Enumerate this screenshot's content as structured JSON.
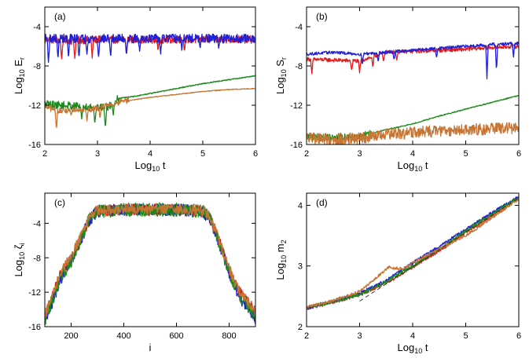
{
  "chart_data": [
    {
      "type": "line",
      "panel_label": "(a)",
      "xlabel": {
        "base": "Log",
        "sub": "10",
        "rest": " t"
      },
      "ylabel": {
        "base": "Log",
        "sub": "10",
        "rest": " E",
        "sub2": "r"
      },
      "xlim": [
        2,
        6
      ],
      "ylim": [
        -16,
        -2
      ],
      "xticks": [
        2,
        3,
        4,
        5,
        6
      ],
      "xtick_labels": [
        "2",
        "3",
        "4",
        "5",
        "6"
      ],
      "yticks": [
        -4,
        -8,
        -12,
        -16
      ],
      "ytick_labels": [
        "-4",
        "-8",
        "-12",
        "-16"
      ],
      "series": [
        {
          "name": "red",
          "color": "#e41a1c",
          "x": [
            2,
            2.5,
            3,
            3.5,
            4,
            4.5,
            5,
            5.5,
            6
          ],
          "values": [
            -5.3,
            -5.4,
            -5.3,
            -5.3,
            -5.3,
            -5.3,
            -5.3,
            -5.3,
            -5.3
          ],
          "noise": 0.4,
          "dips": [
            [
              2.32,
              -7.5
            ],
            [
              2.57,
              -7.3
            ],
            [
              2.9,
              -7.2
            ],
            [
              3.55,
              -7
            ],
            [
              4.15,
              -6.5
            ],
            [
              4.65,
              -6.5
            ]
          ]
        },
        {
          "name": "blue",
          "color": "#1f1fd6",
          "x": [
            2,
            2.5,
            3,
            3.5,
            4,
            4.5,
            5,
            5.5,
            6
          ],
          "values": [
            -5.2,
            -5.2,
            -5.2,
            -5.2,
            -5.2,
            -5.2,
            -5.2,
            -5.2,
            -5.2
          ],
          "noise": 0.45,
          "dips": [
            [
              2.07,
              -7.7
            ],
            [
              2.25,
              -7.4
            ],
            [
              2.45,
              -7.3
            ],
            [
              2.65,
              -7.2
            ],
            [
              2.8,
              -6.8
            ],
            [
              3.02,
              -7.3
            ],
            [
              3.25,
              -7.2
            ],
            [
              3.55,
              -6.9
            ],
            [
              3.8,
              -6.5
            ],
            [
              4.2,
              -6.8
            ],
            [
              4.6,
              -6.4
            ],
            [
              4.95,
              -6.3
            ],
            [
              5.3,
              -6.2
            ]
          ]
        },
        {
          "name": "green",
          "color": "#1a8a1a",
          "x": [
            2,
            2.3,
            2.6,
            2.9,
            3.2,
            3.4,
            3.7,
            4,
            4.5,
            5,
            5.5,
            6
          ],
          "values": [
            -11.9,
            -12,
            -12.1,
            -12.2,
            -12.2,
            -11.3,
            -11.1,
            -10.8,
            -10.3,
            -9.8,
            -9.4,
            -9.0
          ],
          "noise": 0.4,
          "dips": [
            [
              2.7,
              -13.4
            ],
            [
              2.95,
              -14
            ],
            [
              3.15,
              -14.4
            ],
            [
              3.3,
              -13
            ]
          ],
          "smooth_from": 3.4
        },
        {
          "name": "orange",
          "color": "#c87533",
          "x": [
            2,
            2.3,
            2.6,
            2.9,
            3.2,
            3.5,
            4,
            4.5,
            5,
            5.5,
            6
          ],
          "values": [
            -12.2,
            -12.6,
            -12.4,
            -12.4,
            -12.0,
            -11.6,
            -11.2,
            -10.9,
            -10.6,
            -10.4,
            -10.3
          ],
          "noise": 0.3,
          "dips": [
            [
              2.22,
              -14.5
            ],
            [
              2.5,
              -13
            ],
            [
              2.8,
              -13.6
            ],
            [
              3.05,
              -13.4
            ]
          ],
          "smooth_from": 3.6
        }
      ]
    },
    {
      "type": "line",
      "panel_label": "(b)",
      "xlabel": {
        "base": "Log",
        "sub": "10",
        "rest": " t"
      },
      "ylabel": {
        "base": "Log",
        "sub": "10",
        "rest": " S",
        "sub2": "r"
      },
      "xlim": [
        2,
        6
      ],
      "ylim": [
        -16,
        -2
      ],
      "xticks": [
        2,
        3,
        4,
        5,
        6
      ],
      "xtick_labels": [
        "2",
        "3",
        "4",
        "5",
        "6"
      ],
      "yticks": [
        -4,
        -8,
        -12,
        -16
      ],
      "ytick_labels": [
        "-4",
        "-8",
        "-12",
        "-16"
      ],
      "series": [
        {
          "name": "red",
          "color": "#e41a1c",
          "x": [
            2,
            2.5,
            3,
            3.5,
            4,
            4.5,
            5,
            5.5,
            6
          ],
          "values": [
            -7.3,
            -7.4,
            -7.5,
            -6.6,
            -6.5,
            -6.4,
            -6.3,
            -6.1,
            -6.0
          ],
          "noise": 0.2,
          "dips": [
            [
              2.1,
              -8.8
            ],
            [
              2.85,
              -8.5
            ],
            [
              3.0,
              -8.7
            ],
            [
              3.25,
              -8.2
            ],
            [
              3.45,
              -7.6
            ],
            [
              3.7,
              -7.4
            ]
          ]
        },
        {
          "name": "blue",
          "color": "#1f1fd6",
          "x": [
            2,
            2.5,
            3,
            3.5,
            4,
            4.5,
            5,
            5.5,
            6
          ],
          "values": [
            -6.8,
            -6.6,
            -6.8,
            -6.6,
            -6.4,
            -6.2,
            -6.0,
            -5.8,
            -5.7
          ],
          "noise": 0.15,
          "dips": [
            [
              3.05,
              -7.9
            ],
            [
              3.35,
              -7.6
            ],
            [
              3.65,
              -7.4
            ],
            [
              4.45,
              -7.2
            ],
            [
              5.4,
              -9.3
            ],
            [
              5.58,
              -8.5
            ],
            [
              5.9,
              -7.1
            ]
          ]
        },
        {
          "name": "green",
          "color": "#1a8a1a",
          "x": [
            2,
            2.5,
            3,
            3.2,
            3.5,
            4,
            4.5,
            5,
            5.5,
            6
          ],
          "values": [
            -15.2,
            -15.3,
            -15.1,
            -14.9,
            -14.5,
            -13.9,
            -13.1,
            -12.4,
            -11.7,
            -11.0
          ],
          "noise": 0.4,
          "dips": [],
          "smooth_from": 3.2
        },
        {
          "name": "orange",
          "color": "#c87533",
          "x": [
            2,
            2.5,
            3,
            3.5,
            4,
            4.5,
            5,
            5.5,
            6
          ],
          "values": [
            -15.3,
            -15.5,
            -15.4,
            -15.0,
            -14.8,
            -14.6,
            -14.5,
            -14.4,
            -14.3
          ],
          "noise": 0.6,
          "dips": []
        }
      ]
    },
    {
      "type": "line",
      "panel_label": "(c)",
      "xlabel": {
        "base": "i",
        "sub": "",
        "rest": ""
      },
      "ylabel": {
        "base": "Log",
        "sub": "10",
        "rest": " ζ",
        "sub2": "i"
      },
      "xlim": [
        100,
        900
      ],
      "ylim": [
        -16,
        -0.5
      ],
      "xticks": [
        200,
        400,
        600,
        800
      ],
      "xtick_labels": [
        "200",
        "400",
        "600",
        "800"
      ],
      "yticks": [
        -4,
        -8,
        -12,
        -16
      ],
      "ytick_labels": [
        "-4",
        "-8",
        "-12",
        "-16"
      ],
      "series": [
        {
          "name": "red",
          "color": "#e41a1c",
          "x": [
            100,
            130,
            160,
            200,
            240,
            270,
            300,
            400,
            500,
            600,
            700,
            730,
            760,
            790,
            820,
            850,
            880,
            900
          ],
          "values": [
            -15,
            -12.5,
            -10,
            -8,
            -5.5,
            -3.5,
            -2.6,
            -2.4,
            -2.4,
            -2.4,
            -2.6,
            -3.5,
            -6,
            -8.5,
            -11,
            -12.5,
            -13.5,
            -14.5
          ],
          "noise": 0.7,
          "dips": []
        },
        {
          "name": "blue",
          "color": "#1f1fd6",
          "x": [
            100,
            130,
            160,
            200,
            240,
            270,
            300,
            400,
            500,
            600,
            700,
            730,
            760,
            790,
            820,
            850,
            880,
            900
          ],
          "values": [
            -15.5,
            -13,
            -10.5,
            -8.2,
            -5.7,
            -3.6,
            -2.6,
            -2.4,
            -2.4,
            -2.4,
            -2.6,
            -3.6,
            -6.2,
            -8.8,
            -11.3,
            -13,
            -14,
            -15.2
          ],
          "noise": 0.7,
          "dips": []
        },
        {
          "name": "green",
          "color": "#1a8a1a",
          "x": [
            100,
            130,
            160,
            200,
            240,
            270,
            300,
            400,
            500,
            600,
            700,
            730,
            760,
            790,
            820,
            850,
            880,
            900
          ],
          "values": [
            -15.2,
            -12.8,
            -10.3,
            -8.4,
            -5.6,
            -3.4,
            -2.6,
            -2.4,
            -2.4,
            -2.4,
            -2.6,
            -3.4,
            -6.1,
            -8.7,
            -11.2,
            -12.8,
            -13.8,
            -14.8
          ],
          "noise": 0.8,
          "dips": []
        },
        {
          "name": "orange",
          "color": "#c87533",
          "x": [
            100,
            130,
            160,
            200,
            240,
            270,
            300,
            400,
            500,
            600,
            700,
            730,
            760,
            790,
            820,
            850,
            880,
            900
          ],
          "values": [
            -14.8,
            -12.2,
            -9.8,
            -7.8,
            -5.3,
            -3.3,
            -2.5,
            -2.3,
            -2.3,
            -2.3,
            -2.5,
            -3.3,
            -5.8,
            -8.4,
            -10.8,
            -12.4,
            -13.4,
            -14.2
          ],
          "noise": 0.6,
          "dips": []
        }
      ]
    },
    {
      "type": "line",
      "panel_label": "(d)",
      "xlabel": {
        "base": "Log",
        "sub": "10",
        "rest": " t"
      },
      "ylabel": {
        "base": "Log",
        "sub": "10",
        "rest": " m",
        "sub2": "2"
      },
      "xlim": [
        2,
        6
      ],
      "ylim": [
        2,
        4.2
      ],
      "xticks": [
        2,
        3,
        4,
        5,
        6
      ],
      "xtick_labels": [
        "2",
        "3",
        "4",
        "5",
        "6"
      ],
      "yticks": [
        2,
        3,
        4
      ],
      "ytick_labels": [
        "2",
        "3",
        "4"
      ],
      "series": [
        {
          "name": "red",
          "color": "#e41a1c",
          "x": [
            2,
            2.5,
            3,
            3.5,
            4,
            4.5,
            5,
            5.5,
            6
          ],
          "values": [
            2.3,
            2.4,
            2.52,
            2.72,
            2.98,
            3.25,
            3.55,
            3.83,
            4.12
          ],
          "noise": 0.025,
          "dips": []
        },
        {
          "name": "blue",
          "color": "#1f1fd6",
          "x": [
            2,
            2.5,
            3,
            3.5,
            4,
            4.5,
            5,
            5.5,
            6
          ],
          "values": [
            2.3,
            2.42,
            2.55,
            2.76,
            3.05,
            3.32,
            3.6,
            3.88,
            4.14
          ],
          "noise": 0.025,
          "dips": []
        },
        {
          "name": "green",
          "color": "#1a8a1a",
          "x": [
            2,
            2.5,
            3,
            3.5,
            4,
            4.5,
            5,
            5.5,
            6
          ],
          "values": [
            2.32,
            2.41,
            2.53,
            2.74,
            3.0,
            3.28,
            3.58,
            3.86,
            4.13
          ],
          "noise": 0.025,
          "dips": []
        },
        {
          "name": "orange",
          "color": "#c87533",
          "x": [
            2,
            2.5,
            3,
            3.3,
            3.55,
            3.8,
            4,
            4.5,
            5,
            5.5,
            6
          ],
          "values": [
            2.32,
            2.43,
            2.58,
            2.8,
            2.98,
            2.95,
            3.05,
            3.28,
            3.5,
            3.8,
            4.1
          ],
          "noise": 0.025,
          "dips": []
        },
        {
          "name": "reference",
          "color": "#333333",
          "dashed": true,
          "x": [
            3,
            6
          ],
          "values": [
            2.42,
            4.12
          ],
          "noise": 0,
          "dips": []
        }
      ]
    }
  ]
}
